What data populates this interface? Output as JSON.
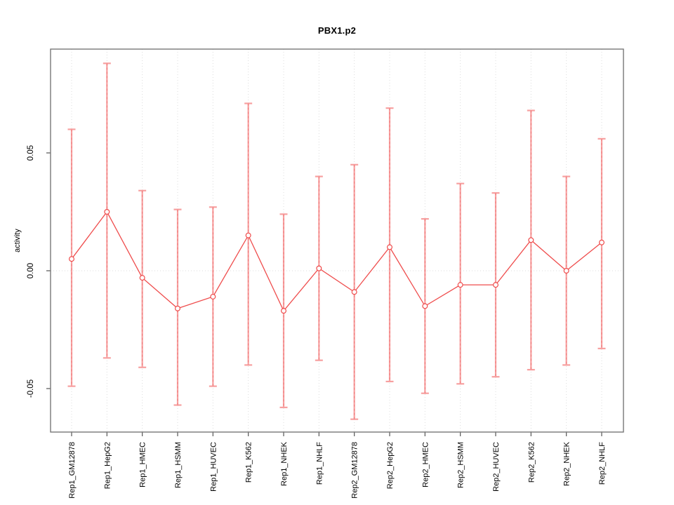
{
  "chart_data": {
    "type": "line",
    "title": "PBX1.p2",
    "xlabel": "",
    "ylabel": "activity",
    "categories": [
      "Rep1_GM12878",
      "Rep1_HepG2",
      "Rep1_HMEC",
      "Rep1_HSMM",
      "Rep1_HUVEC",
      "Rep1_K562",
      "Rep1_NHEK",
      "Rep1_NHLF",
      "Rep2_GM12878",
      "Rep2_HepG2",
      "Rep2_HMEC",
      "Rep2_HSMM",
      "Rep2_HUVEC",
      "Rep2_K562",
      "Rep2_NHEK",
      "Rep2_NHLF"
    ],
    "series": [
      {
        "name": "activity",
        "values": [
          0.005,
          0.025,
          -0.003,
          -0.016,
          -0.011,
          0.015,
          -0.017,
          0.001,
          -0.009,
          0.01,
          -0.015,
          -0.006,
          -0.006,
          0.013,
          0.0,
          0.012
        ],
        "error_high": [
          0.06,
          0.088,
          0.034,
          0.026,
          0.027,
          0.071,
          0.024,
          0.04,
          0.045,
          0.069,
          0.022,
          0.037,
          0.033,
          0.068,
          0.04,
          0.056
        ],
        "error_low": [
          -0.049,
          -0.037,
          -0.041,
          -0.057,
          -0.049,
          -0.04,
          -0.058,
          -0.038,
          -0.063,
          -0.047,
          -0.052,
          -0.048,
          -0.045,
          -0.042,
          -0.04,
          -0.033
        ]
      }
    ],
    "yticks": [
      0.05,
      0.0,
      -0.05
    ],
    "ytick_labels": [
      "0.05",
      "0.00",
      "-0.05"
    ],
    "ylim": [
      -0.0685,
      0.094
    ],
    "grid": "dotted vertical line per category; dotted horizontal line at y=0",
    "legend": "none",
    "marker": "open-circle",
    "colors": {
      "line": "#ef4c4c",
      "point_stroke": "#ef4c4c",
      "point_fill": "#ffffff",
      "error_bar": "#f7a0a0",
      "error_bar_dash": "#e85555",
      "gridline": "#dcdcdc",
      "axis_box": "#777777",
      "tick": "#555555",
      "text": "#000000"
    }
  }
}
